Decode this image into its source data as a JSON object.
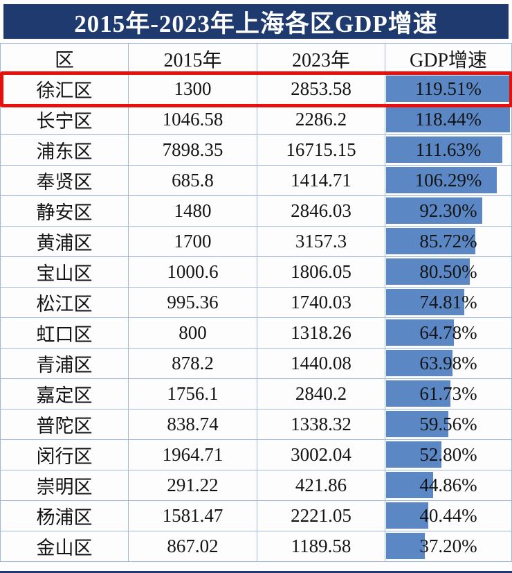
{
  "title": "2015年-2023年上海各区GDP增速",
  "colors": {
    "title_bg": "#1e3a6e",
    "bar_fill": "#5b87c5",
    "highlight_border": "#e8100c",
    "table_border": "#9db6d9"
  },
  "chart_data": {
    "type": "table",
    "title": "2015年-2023年上海各区GDP增速",
    "columns": [
      "区",
      "2015年",
      "2023年",
      "GDP增速"
    ],
    "bar_max": 119.51,
    "bar_style": "left-anchored data bars in GDP增速 column, scaled to max value",
    "rows": [
      {
        "district": "徐汇区",
        "v2015": "1300",
        "v2023": "2853.58",
        "growth": "119.51%",
        "pct": 119.51,
        "highlighted": true
      },
      {
        "district": "长宁区",
        "v2015": "1046.58",
        "v2023": "2286.2",
        "growth": "118.44%",
        "pct": 118.44,
        "highlighted": false
      },
      {
        "district": "浦东区",
        "v2015": "7898.35",
        "v2023": "16715.15",
        "growth": "111.63%",
        "pct": 111.63,
        "highlighted": false
      },
      {
        "district": "奉贤区",
        "v2015": "685.8",
        "v2023": "1414.71",
        "growth": "106.29%",
        "pct": 106.29,
        "highlighted": false
      },
      {
        "district": "静安区",
        "v2015": "1480",
        "v2023": "2846.03",
        "growth": "92.30%",
        "pct": 92.3,
        "highlighted": false
      },
      {
        "district": "黄浦区",
        "v2015": "1700",
        "v2023": "3157.3",
        "growth": "85.72%",
        "pct": 85.72,
        "highlighted": false
      },
      {
        "district": "宝山区",
        "v2015": "1000.6",
        "v2023": "1806.05",
        "growth": "80.50%",
        "pct": 80.5,
        "highlighted": false
      },
      {
        "district": "松江区",
        "v2015": "995.36",
        "v2023": "1740.03",
        "growth": "74.81%",
        "pct": 74.81,
        "highlighted": false
      },
      {
        "district": "虹口区",
        "v2015": "800",
        "v2023": "1318.26",
        "growth": "64.78%",
        "pct": 64.78,
        "highlighted": false
      },
      {
        "district": "青浦区",
        "v2015": "878.2",
        "v2023": "1440.08",
        "growth": "63.98%",
        "pct": 63.98,
        "highlighted": false
      },
      {
        "district": "嘉定区",
        "v2015": "1756.1",
        "v2023": "2840.2",
        "growth": "61.73%",
        "pct": 61.73,
        "highlighted": false
      },
      {
        "district": "普陀区",
        "v2015": "838.74",
        "v2023": "1338.32",
        "growth": "59.56%",
        "pct": 59.56,
        "highlighted": false
      },
      {
        "district": "闵行区",
        "v2015": "1964.71",
        "v2023": "3002.04",
        "growth": "52.80%",
        "pct": 52.8,
        "highlighted": false
      },
      {
        "district": "崇明区",
        "v2015": "291.22",
        "v2023": "421.86",
        "growth": "44.86%",
        "pct": 44.86,
        "highlighted": false
      },
      {
        "district": "杨浦区",
        "v2015": "1581.47",
        "v2023": "2221.05",
        "growth": "40.44%",
        "pct": 40.44,
        "highlighted": false
      },
      {
        "district": "金山区",
        "v2015": "867.02",
        "v2023": "1189.58",
        "growth": "37.20%",
        "pct": 37.2,
        "highlighted": false
      }
    ]
  }
}
